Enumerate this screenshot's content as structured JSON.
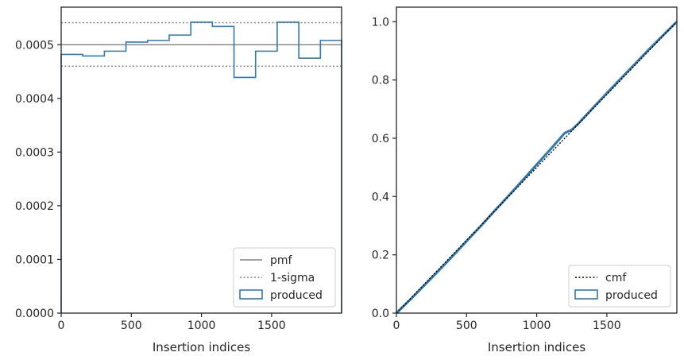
{
  "colors": {
    "produced": "#2f7ab0",
    "pmf": "#808080",
    "sigma": "#808080",
    "cmf": "#000000",
    "axes": "#262626"
  },
  "chart_data": [
    {
      "type": "step",
      "xlabel": "Insertion indices",
      "ylabel": "",
      "xlim": [
        0,
        1999
      ],
      "ylim": [
        0,
        0.00057
      ],
      "x_ticks": [
        0,
        500,
        1000,
        1500
      ],
      "x_tick_labels": [
        "0",
        "500",
        "1000",
        "1500"
      ],
      "y_ticks": [
        0,
        0.0001,
        0.0002,
        0.0003,
        0.0004,
        0.0005
      ],
      "y_tick_labels": [
        "0.0000",
        "0.0001",
        "0.0002",
        "0.0003",
        "0.0004",
        "0.0005"
      ],
      "legend_position": "lower-right",
      "pmf": 0.0005,
      "sigma_upper": 0.000541,
      "sigma_lower": 0.00046,
      "bin_edges": [
        0,
        154,
        308,
        462,
        616,
        770,
        924,
        1078,
        1232,
        1386,
        1540,
        1694,
        1848,
        1999
      ],
      "produced": [
        0.000482,
        0.000479,
        0.000488,
        0.000505,
        0.000508,
        0.000518,
        0.000542,
        0.000534,
        0.000439,
        0.000488,
        0.000542,
        0.000475,
        0.000508
      ],
      "legend": [
        {
          "label": "pmf",
          "style": "solid",
          "key": "pmf"
        },
        {
          "label": "1-sigma",
          "style": "dotted",
          "key": "sigma"
        },
        {
          "label": "produced",
          "style": "box",
          "key": "produced"
        }
      ]
    },
    {
      "type": "line",
      "xlabel": "Insertion indices",
      "ylabel": "",
      "xlim": [
        0,
        1999
      ],
      "ylim": [
        0,
        1.05
      ],
      "x_ticks": [
        0,
        500,
        1000,
        1500
      ],
      "x_tick_labels": [
        "0",
        "500",
        "1000",
        "1500"
      ],
      "y_ticks": [
        0,
        0.2,
        0.4,
        0.6,
        0.8,
        1.0
      ],
      "y_tick_labels": [
        "0.0",
        "0.2",
        "0.4",
        "0.6",
        "0.8",
        "1.0"
      ],
      "legend_position": "lower-right",
      "cmf": {
        "x": [
          0,
          1999
        ],
        "y": [
          0,
          1.0
        ]
      },
      "produced": {
        "x": [
          0,
          100,
          200,
          300,
          400,
          500,
          600,
          700,
          800,
          900,
          1000,
          1100,
          1200,
          1250,
          1300,
          1400,
          1500,
          1600,
          1700,
          1800,
          1900,
          1999
        ],
        "y": [
          0,
          0.047,
          0.096,
          0.145,
          0.195,
          0.247,
          0.298,
          0.351,
          0.403,
          0.456,
          0.51,
          0.563,
          0.618,
          0.629,
          0.652,
          0.704,
          0.755,
          0.805,
          0.855,
          0.905,
          0.953,
          1.0
        ]
      },
      "legend": [
        {
          "label": "cmf",
          "style": "dotted",
          "key": "cmf"
        },
        {
          "label": "produced",
          "style": "box",
          "key": "produced"
        }
      ]
    }
  ]
}
